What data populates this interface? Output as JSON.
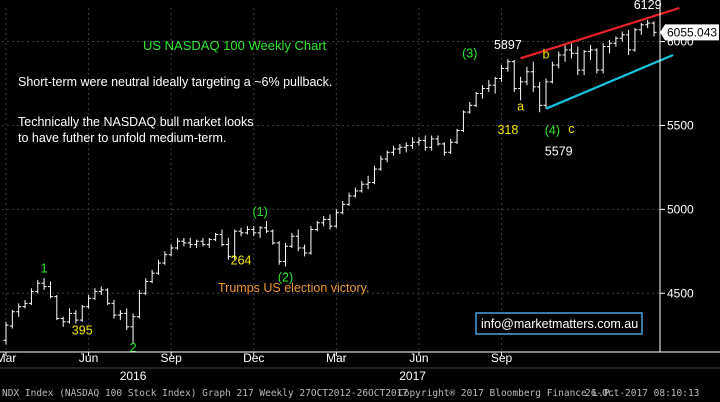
{
  "chart_data": {
    "type": "ohlc",
    "title": "US NASDAQ 100 Weekly Chart",
    "ylim": [
      4150,
      6200
    ],
    "ytick_values": [
      4500,
      5000,
      5500,
      6000
    ],
    "ytick_labels": [
      "4500",
      "5000",
      "5500",
      "6000"
    ],
    "last_price": 6055.043,
    "last_price_label": "6055.043",
    "xtick_labels": [
      "Mar",
      "Jun",
      "Sep",
      "Dec",
      "Mar",
      "Jun",
      "Sep"
    ],
    "xtick_index": [
      0,
      13,
      26,
      39,
      52,
      65,
      78
    ],
    "year_labels": [
      "2016",
      "2017"
    ],
    "year_label_index": [
      20,
      64
    ],
    "grid": true,
    "bars": [
      {
        "o": 4220,
        "h": 4330,
        "l": 4195,
        "c": 4310
      },
      {
        "o": 4305,
        "h": 4400,
        "l": 4290,
        "c": 4390
      },
      {
        "o": 4390,
        "h": 4440,
        "l": 4360,
        "c": 4420
      },
      {
        "o": 4420,
        "h": 4460,
        "l": 4410,
        "c": 4440
      },
      {
        "o": 4440,
        "h": 4530,
        "l": 4430,
        "c": 4510
      },
      {
        "o": 4510,
        "h": 4580,
        "l": 4500,
        "c": 4560
      },
      {
        "o": 4560,
        "h": 4590,
        "l": 4520,
        "c": 4540
      },
      {
        "o": 4540,
        "h": 4570,
        "l": 4470,
        "c": 4480
      },
      {
        "o": 4480,
        "h": 4490,
        "l": 4340,
        "c": 4350
      },
      {
        "o": 4350,
        "h": 4360,
        "l": 4300,
        "c": 4330
      },
      {
        "o": 4330,
        "h": 4410,
        "l": 4320,
        "c": 4380
      },
      {
        "o": 4380,
        "h": 4400,
        "l": 4320,
        "c": 4340
      },
      {
        "o": 4340,
        "h": 4430,
        "l": 4330,
        "c": 4420
      },
      {
        "o": 4420,
        "h": 4490,
        "l": 4410,
        "c": 4470
      },
      {
        "o": 4470,
        "h": 4530,
        "l": 4460,
        "c": 4510
      },
      {
        "o": 4510,
        "h": 4540,
        "l": 4490,
        "c": 4520
      },
      {
        "o": 4520,
        "h": 4530,
        "l": 4430,
        "c": 4440
      },
      {
        "o": 4440,
        "h": 4460,
        "l": 4350,
        "c": 4370
      },
      {
        "o": 4370,
        "h": 4400,
        "l": 4340,
        "c": 4380
      },
      {
        "o": 4380,
        "h": 4410,
        "l": 4280,
        "c": 4300
      },
      {
        "o": 4300,
        "h": 4380,
        "l": 4200,
        "c": 4360
      },
      {
        "o": 4360,
        "h": 4520,
        "l": 4350,
        "c": 4500
      },
      {
        "o": 4500,
        "h": 4590,
        "l": 4490,
        "c": 4570
      },
      {
        "o": 4570,
        "h": 4640,
        "l": 4560,
        "c": 4620
      },
      {
        "o": 4620,
        "h": 4700,
        "l": 4610,
        "c": 4680
      },
      {
        "o": 4680,
        "h": 4750,
        "l": 4670,
        "c": 4730
      },
      {
        "o": 4730,
        "h": 4790,
        "l": 4720,
        "c": 4770
      },
      {
        "o": 4770,
        "h": 4830,
        "l": 4760,
        "c": 4810
      },
      {
        "o": 4810,
        "h": 4830,
        "l": 4780,
        "c": 4800
      },
      {
        "o": 4800,
        "h": 4830,
        "l": 4770,
        "c": 4790
      },
      {
        "o": 4790,
        "h": 4820,
        "l": 4770,
        "c": 4810
      },
      {
        "o": 4810,
        "h": 4830,
        "l": 4780,
        "c": 4790
      },
      {
        "o": 4790,
        "h": 4830,
        "l": 4770,
        "c": 4820
      },
      {
        "o": 4820,
        "h": 4860,
        "l": 4810,
        "c": 4850
      },
      {
        "o": 4850,
        "h": 4880,
        "l": 4780,
        "c": 4790
      },
      {
        "o": 4790,
        "h": 4830,
        "l": 4700,
        "c": 4720
      },
      {
        "o": 4720,
        "h": 4880,
        "l": 4700,
        "c": 4870
      },
      {
        "o": 4870,
        "h": 4890,
        "l": 4840,
        "c": 4860
      },
      {
        "o": 4860,
        "h": 4900,
        "l": 4850,
        "c": 4880
      },
      {
        "o": 4880,
        "h": 4900,
        "l": 4840,
        "c": 4860
      },
      {
        "o": 4860,
        "h": 4900,
        "l": 4830,
        "c": 4890
      },
      {
        "o": 4890,
        "h": 4930,
        "l": 4860,
        "c": 4870
      },
      {
        "o": 4870,
        "h": 4880,
        "l": 4790,
        "c": 4800
      },
      {
        "o": 4800,
        "h": 4810,
        "l": 4670,
        "c": 4690
      },
      {
        "o": 4690,
        "h": 4800,
        "l": 4660,
        "c": 4780
      },
      {
        "o": 4780,
        "h": 4860,
        "l": 4770,
        "c": 4840
      },
      {
        "o": 4840,
        "h": 4880,
        "l": 4750,
        "c": 4770
      },
      {
        "o": 4770,
        "h": 4790,
        "l": 4720,
        "c": 4740
      },
      {
        "o": 4740,
        "h": 4900,
        "l": 4730,
        "c": 4880
      },
      {
        "o": 4880,
        "h": 4930,
        "l": 4870,
        "c": 4920
      },
      {
        "o": 4920,
        "h": 4960,
        "l": 4900,
        "c": 4940
      },
      {
        "o": 4940,
        "h": 4970,
        "l": 4880,
        "c": 4900
      },
      {
        "o": 4900,
        "h": 5000,
        "l": 4890,
        "c": 4980
      },
      {
        "o": 4980,
        "h": 5050,
        "l": 4970,
        "c": 5030
      },
      {
        "o": 5030,
        "h": 5100,
        "l": 5020,
        "c": 5080
      },
      {
        "o": 5080,
        "h": 5130,
        "l": 5070,
        "c": 5110
      },
      {
        "o": 5110,
        "h": 5170,
        "l": 5100,
        "c": 5150
      },
      {
        "o": 5150,
        "h": 5200,
        "l": 5120,
        "c": 5160
      },
      {
        "o": 5160,
        "h": 5260,
        "l": 5150,
        "c": 5240
      },
      {
        "o": 5240,
        "h": 5320,
        "l": 5230,
        "c": 5300
      },
      {
        "o": 5300,
        "h": 5350,
        "l": 5280,
        "c": 5340
      },
      {
        "o": 5340,
        "h": 5380,
        "l": 5320,
        "c": 5360
      },
      {
        "o": 5360,
        "h": 5390,
        "l": 5330,
        "c": 5370
      },
      {
        "o": 5370,
        "h": 5400,
        "l": 5340,
        "c": 5380
      },
      {
        "o": 5380,
        "h": 5430,
        "l": 5360,
        "c": 5400
      },
      {
        "o": 5400,
        "h": 5430,
        "l": 5380,
        "c": 5410
      },
      {
        "o": 5410,
        "h": 5440,
        "l": 5350,
        "c": 5370
      },
      {
        "o": 5370,
        "h": 5440,
        "l": 5350,
        "c": 5420
      },
      {
        "o": 5420,
        "h": 5440,
        "l": 5380,
        "c": 5390
      },
      {
        "o": 5390,
        "h": 5400,
        "l": 5320,
        "c": 5340
      },
      {
        "o": 5340,
        "h": 5420,
        "l": 5330,
        "c": 5400
      },
      {
        "o": 5400,
        "h": 5480,
        "l": 5390,
        "c": 5470
      },
      {
        "o": 5470,
        "h": 5590,
        "l": 5460,
        "c": 5580
      },
      {
        "o": 5580,
        "h": 5640,
        "l": 5570,
        "c": 5620
      },
      {
        "o": 5620,
        "h": 5700,
        "l": 5610,
        "c": 5690
      },
      {
        "o": 5690,
        "h": 5740,
        "l": 5660,
        "c": 5720
      },
      {
        "o": 5720,
        "h": 5770,
        "l": 5700,
        "c": 5740
      },
      {
        "o": 5740,
        "h": 5790,
        "l": 5690,
        "c": 5780
      },
      {
        "o": 5780,
        "h": 5860,
        "l": 5760,
        "c": 5840
      },
      {
        "o": 5840,
        "h": 5897,
        "l": 5820,
        "c": 5880
      },
      {
        "o": 5880,
        "h": 5890,
        "l": 5700,
        "c": 5720
      },
      {
        "o": 5720,
        "h": 5790,
        "l": 5650,
        "c": 5760
      },
      {
        "o": 5760,
        "h": 5850,
        "l": 5740,
        "c": 5820
      },
      {
        "o": 5820,
        "h": 5880,
        "l": 5700,
        "c": 5730
      },
      {
        "o": 5730,
        "h": 5760,
        "l": 5579,
        "c": 5620
      },
      {
        "o": 5620,
        "h": 5780,
        "l": 5600,
        "c": 5760
      },
      {
        "o": 5760,
        "h": 5880,
        "l": 5750,
        "c": 5860
      },
      {
        "o": 5860,
        "h": 5940,
        "l": 5840,
        "c": 5920
      },
      {
        "o": 5920,
        "h": 5990,
        "l": 5880,
        "c": 5950
      },
      {
        "o": 5950,
        "h": 5990,
        "l": 5900,
        "c": 5930
      },
      {
        "o": 5930,
        "h": 5970,
        "l": 5800,
        "c": 5830
      },
      {
        "o": 5830,
        "h": 5950,
        "l": 5800,
        "c": 5940
      },
      {
        "o": 5940,
        "h": 5980,
        "l": 5890,
        "c": 5950
      },
      {
        "o": 5950,
        "h": 5960,
        "l": 5810,
        "c": 5830
      },
      {
        "o": 5830,
        "h": 5990,
        "l": 5810,
        "c": 5970
      },
      {
        "o": 5970,
        "h": 6010,
        "l": 5930,
        "c": 5990
      },
      {
        "o": 5990,
        "h": 6030,
        "l": 5970,
        "c": 6020
      },
      {
        "o": 6020,
        "h": 6060,
        "l": 6000,
        "c": 6040
      },
      {
        "o": 6040,
        "h": 6070,
        "l": 5920,
        "c": 5950
      },
      {
        "o": 5950,
        "h": 6080,
        "l": 5940,
        "c": 6070
      },
      {
        "o": 6070,
        "h": 6110,
        "l": 6040,
        "c": 6100
      },
      {
        "o": 6100,
        "h": 6129,
        "l": 6080,
        "c": 6110
      },
      {
        "o": 6110,
        "h": 6120,
        "l": 6030,
        "c": 6055
      }
    ],
    "trendlines": [
      {
        "name": "red",
        "color": "#e8232a",
        "from": {
          "i": 81,
          "v": 5900
        },
        "to": {
          "i": 106,
          "v": 6200
        }
      },
      {
        "name": "cyan",
        "color": "#19c3dd",
        "from": {
          "i": 85,
          "v": 5600
        },
        "to": {
          "i": 105,
          "v": 5920
        }
      }
    ],
    "annotations": [
      {
        "text": "1",
        "color": "#2ee82e",
        "i": 6,
        "v": 4625
      },
      {
        "text": "395",
        "color": "#f2e600",
        "i": 12,
        "v": 4255
      },
      {
        "text": "2",
        "color": "#2ee82e",
        "i": 20,
        "v": 4150
      },
      {
        "text": "(1)",
        "color": "#2ee82e",
        "i": 40,
        "v": 4960
      },
      {
        "text": "264",
        "color": "#f2e600",
        "i": 37,
        "v": 4670
      },
      {
        "text": "(2)",
        "color": "#2ee82e",
        "i": 44,
        "v": 4570
      },
      {
        "text": "(3)",
        "color": "#2ee82e",
        "i": 73,
        "v": 5905
      },
      {
        "text": "5897",
        "color": "#ffffff",
        "i": 79,
        "v": 5955
      },
      {
        "text": "b",
        "color": "#f2e600",
        "i": 85,
        "v": 5900
      },
      {
        "text": "a",
        "color": "#f2e600",
        "i": 81,
        "v": 5590
      },
      {
        "text": "318",
        "color": "#f2e600",
        "i": 79,
        "v": 5450
      },
      {
        "text": "(4)",
        "color": "#2ee82e",
        "i": 86,
        "v": 5445
      },
      {
        "text": "c",
        "color": "#f2e600",
        "i": 89,
        "v": 5455
      },
      {
        "text": "5579",
        "color": "#ffffff",
        "i": 87,
        "v": 5320
      },
      {
        "text": "6129",
        "color": "#ffffff",
        "i": 101,
        "v": 6195
      }
    ]
  },
  "notes": {
    "title": "US NASDAQ 100 Weekly Chart",
    "line1": "Short-term were neutral ideally targeting a ~6% pullback.",
    "line2": "Technically the NASDAQ bull market looks",
    "line3": "to have futher to unfold medium-term.",
    "election": "Trumps US election victory.",
    "contact": "info@marketmatters.com.au"
  },
  "footer": {
    "left": "NDX Index (NASDAQ 100 Stock Index) Graph 217  Weekly 27OCT2012-26OCT2017",
    "middle": "Copyright® 2017 Bloomberg Finance L.P.",
    "right": "26-Oct-2017 08:10:13"
  },
  "colors": {
    "background": "#000000",
    "bar": "#ffffff",
    "grid": "#3c3c3c",
    "title": "#2ee82e",
    "note_text": "#ffffff",
    "election_text": "#f0962e",
    "contact_border": "#4aa0e0"
  }
}
